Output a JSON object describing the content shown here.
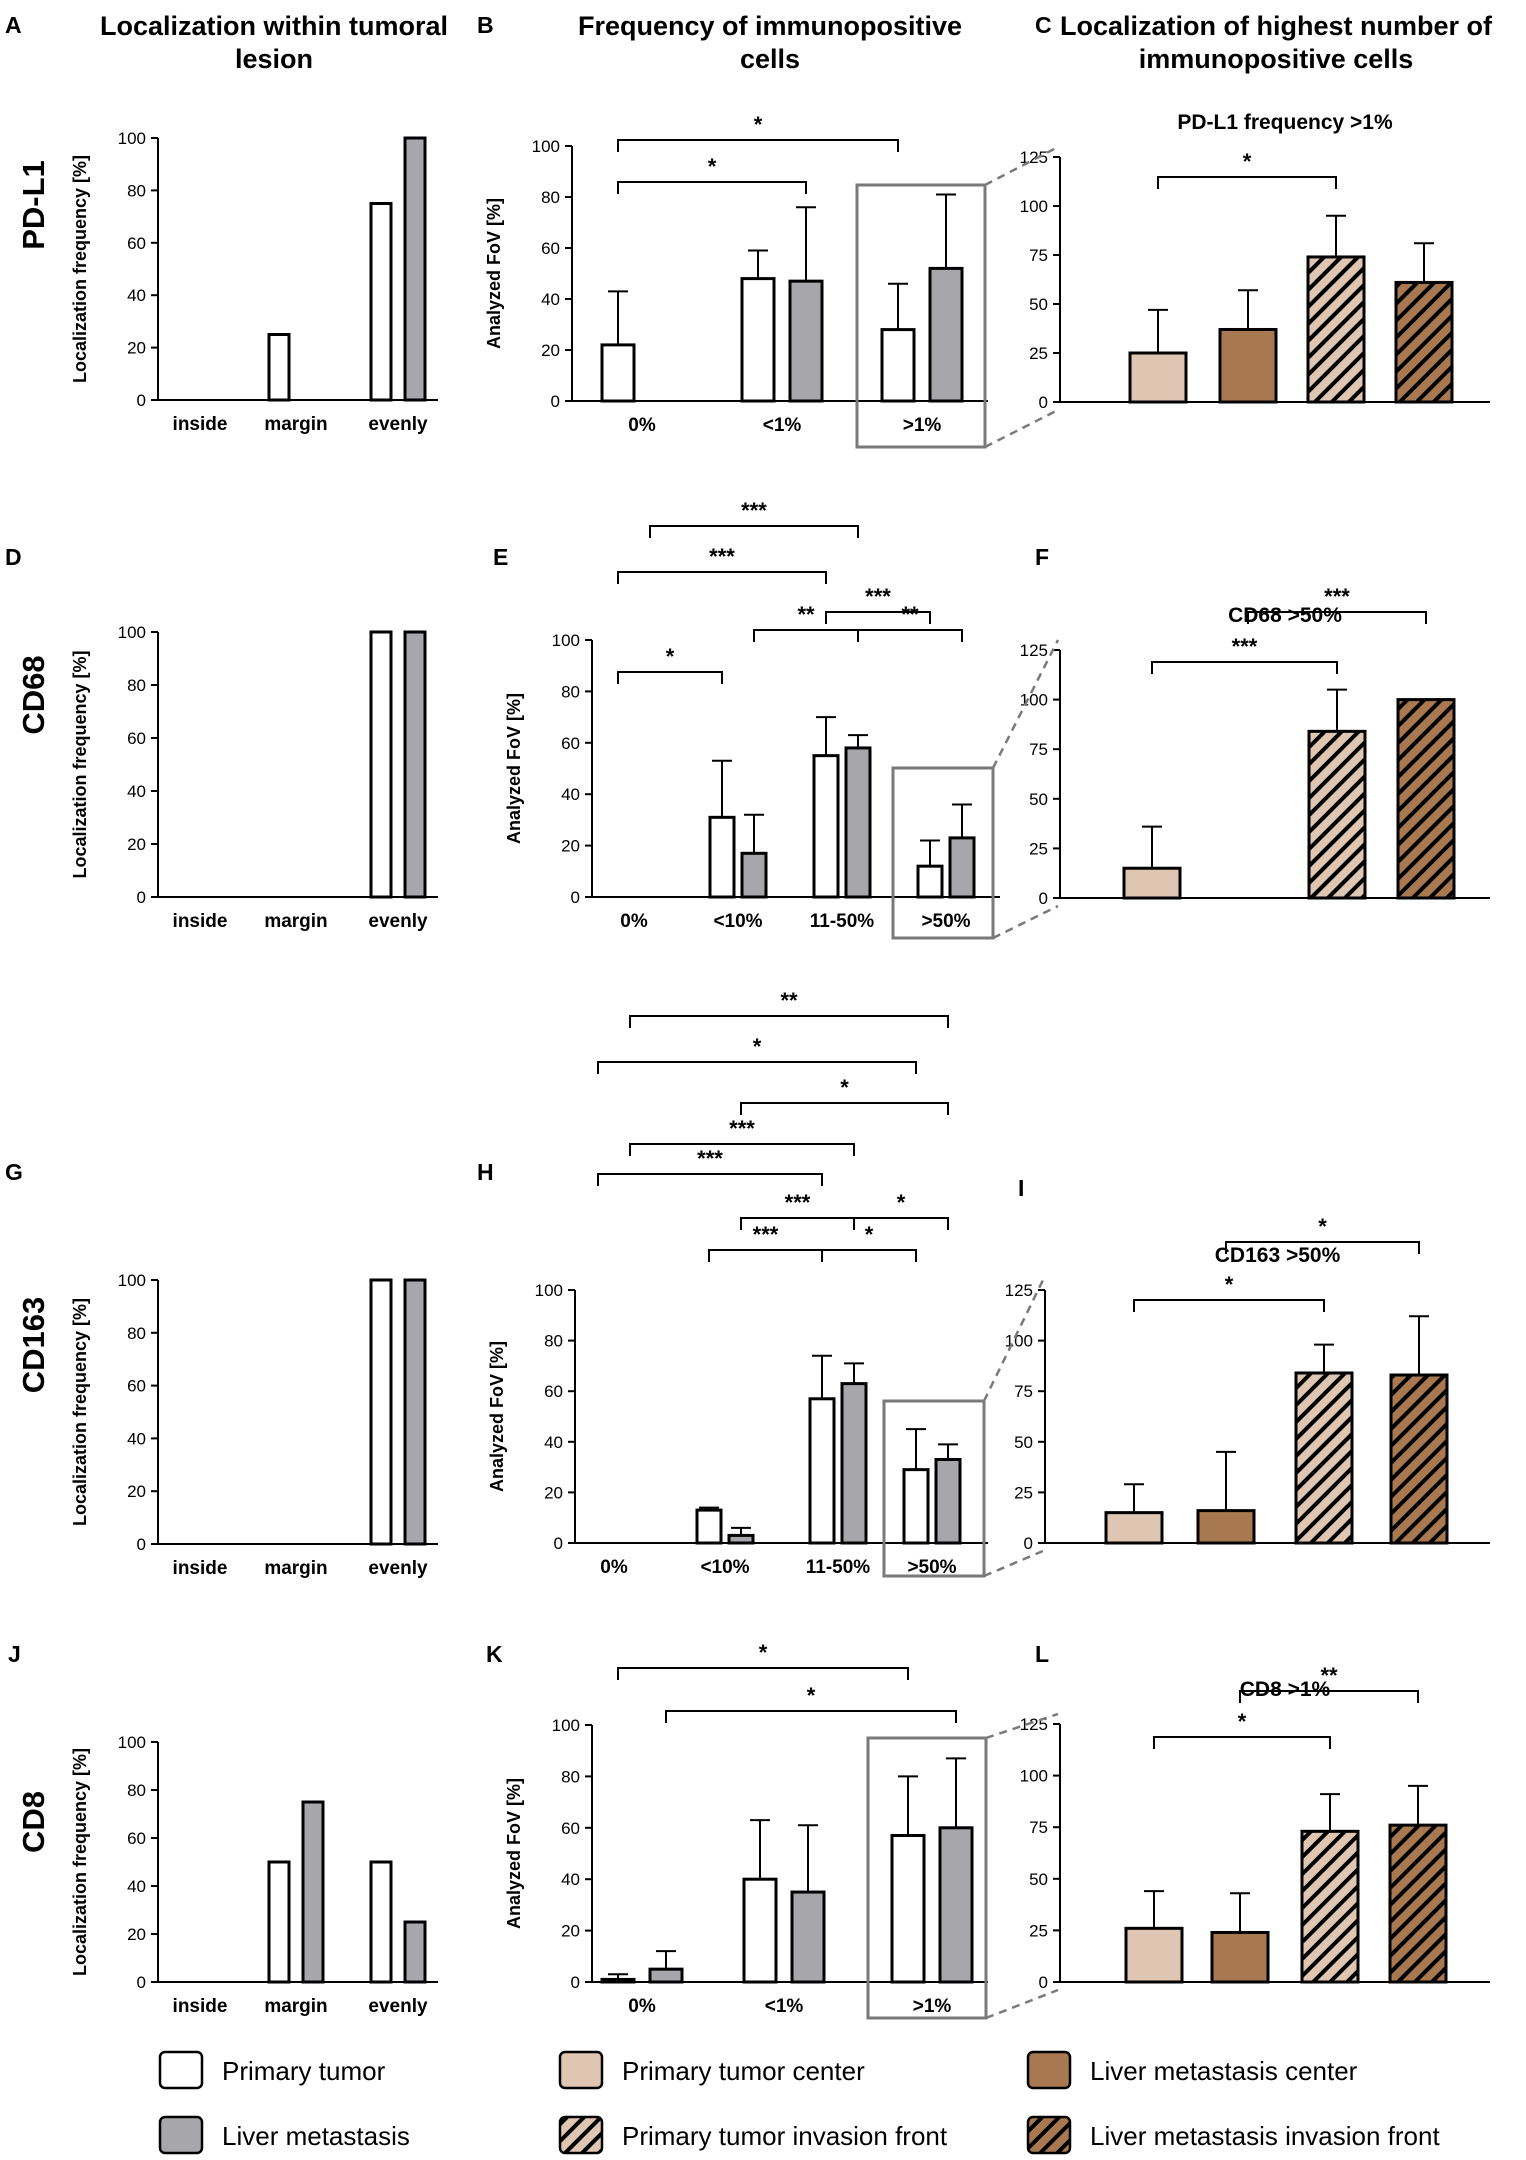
{
  "panel_letters": [
    "A",
    "B",
    "C",
    "D",
    "E",
    "F",
    "G",
    "H",
    "I",
    "J",
    "K",
    "L"
  ],
  "column_titles": {
    "A": [
      "Localization within tumoral",
      "lesion"
    ],
    "B": [
      "Frequency of immunopositive",
      "cells"
    ],
    "C": [
      "Localization of highest number of",
      "immunopositive cells"
    ]
  },
  "row_labels": [
    "PD-L1",
    "CD68",
    "CD163",
    "CD8"
  ],
  "colors": {
    "primary_tumor": "#ffffff",
    "liver_metastasis": "#a7a7ab",
    "primary_center": "#dfc6b3",
    "liver_center": "#a87850",
    "primary_front_bg": "#dfc6b3",
    "liver_front_bg": "#a87850",
    "stroke": "#000000",
    "zoom_box": "#7a7a7a"
  },
  "legend": [
    {
      "label": "Primary tumor",
      "fill": "primary_tumor"
    },
    {
      "label": "Liver metastasis",
      "fill": "liver_metastasis"
    },
    {
      "label": "Primary tumor center",
      "fill": "primary_center"
    },
    {
      "label": "Primary tumor invasion front",
      "fill": "primary_front"
    },
    {
      "label": "Liver metastasis center",
      "fill": "liver_center"
    },
    {
      "label": "Liver metastasis invasion front",
      "fill": "liver_front"
    }
  ],
  "chart_data": [
    {
      "id": "A",
      "type": "bar",
      "title": "",
      "ylabel": "Localization frequency [%]",
      "ylim": [
        0,
        100
      ],
      "yticks": [
        0,
        20,
        40,
        60,
        80,
        100
      ],
      "categories": [
        "inside",
        "margin",
        "evenly"
      ],
      "series": [
        {
          "name": "Primary tumor",
          "values": [
            0,
            25,
            75
          ]
        },
        {
          "name": "Liver metastasis",
          "values": [
            0,
            0,
            100
          ]
        }
      ],
      "errors": null,
      "significance": []
    },
    {
      "id": "B",
      "type": "bar",
      "title": "",
      "ylabel": "Analyzed FoV [%]",
      "ylim": [
        0,
        100
      ],
      "yticks": [
        0,
        20,
        40,
        60,
        80,
        100
      ],
      "categories": [
        "0%",
        "<1%",
        ">1%"
      ],
      "series": [
        {
          "name": "Primary tumor",
          "values": [
            22,
            48,
            28
          ]
        },
        {
          "name": "Liver metastasis",
          "values": [
            0,
            47,
            52
          ]
        }
      ],
      "errors": [
        [
          21,
          11,
          18
        ],
        [
          0,
          29,
          29
        ]
      ],
      "significance": [
        {
          "from": [
            0,
            0
          ],
          "to": [
            2,
            0
          ],
          "label": "*"
        },
        {
          "from": [
            0,
            0
          ],
          "to": [
            1,
            1
          ],
          "label": "*"
        }
      ],
      "highlight": 2
    },
    {
      "id": "C",
      "type": "bar",
      "title": "PD-L1 frequency >1%",
      "ylabel": "",
      "ylim": [
        0,
        125
      ],
      "yticks": [
        0,
        25,
        50,
        75,
        100,
        125
      ],
      "categories": [
        "Primary tumor center",
        "Liver metastasis center",
        "Primary tumor invasion front",
        "Liver metastasis invasion front"
      ],
      "values": [
        25,
        37,
        74,
        61
      ],
      "errors": [
        22,
        20,
        21,
        20
      ],
      "significance": [
        {
          "from": 0,
          "to": 2,
          "label": "*"
        }
      ]
    },
    {
      "id": "D",
      "type": "bar",
      "title": "",
      "ylabel": "Localization frequency [%]",
      "ylim": [
        0,
        100
      ],
      "yticks": [
        0,
        20,
        40,
        60,
        80,
        100
      ],
      "categories": [
        "inside",
        "margin",
        "evenly"
      ],
      "series": [
        {
          "name": "Primary tumor",
          "values": [
            0,
            0,
            100
          ]
        },
        {
          "name": "Liver metastasis",
          "values": [
            0,
            0,
            100
          ]
        }
      ],
      "errors": null,
      "significance": []
    },
    {
      "id": "E",
      "type": "bar",
      "title": "",
      "ylabel": "Analyzed FoV [%]",
      "ylim": [
        0,
        100
      ],
      "yticks": [
        0,
        20,
        40,
        60,
        80,
        100
      ],
      "categories": [
        "0%",
        "<10%",
        "11-50%",
        ">50%"
      ],
      "series": [
        {
          "name": "Primary tumor",
          "values": [
            0,
            31,
            55,
            12
          ]
        },
        {
          "name": "Liver metastasis",
          "values": [
            0,
            17,
            58,
            23
          ]
        }
      ],
      "errors": [
        [
          0,
          22,
          15,
          10
        ],
        [
          0,
          15,
          5,
          13
        ]
      ],
      "significance": [
        {
          "from": [
            0,
            0
          ],
          "to": [
            1,
            0
          ],
          "label": "*"
        },
        {
          "from": [
            2,
            0
          ],
          "to": [
            3,
            0
          ],
          "label": "***"
        },
        {
          "from": [
            1,
            1
          ],
          "to": [
            2,
            1
          ],
          "label": "**"
        },
        {
          "from": [
            2,
            1
          ],
          "to": [
            3,
            1
          ],
          "label": "**"
        },
        {
          "from": [
            0,
            0
          ],
          "to": [
            2,
            0
          ],
          "label": "***"
        },
        {
          "from": [
            0,
            1
          ],
          "to": [
            2,
            1
          ],
          "label": "***"
        }
      ],
      "highlight": 3
    },
    {
      "id": "F",
      "type": "bar",
      "title": "CD68 >50%",
      "ylabel": "",
      "ylim": [
        0,
        125
      ],
      "yticks": [
        0,
        25,
        50,
        75,
        100,
        125
      ],
      "categories": [
        "Primary tumor center",
        "Liver metastasis center",
        "Primary tumor invasion front",
        "Liver metastasis invasion front"
      ],
      "values": [
        15,
        0,
        84,
        100
      ],
      "errors": [
        21,
        0,
        21,
        0
      ],
      "significance": [
        {
          "from": 0,
          "to": 2,
          "label": "***"
        },
        {
          "from": 1,
          "to": 3,
          "label": "***"
        }
      ]
    },
    {
      "id": "G",
      "type": "bar",
      "title": "",
      "ylabel": "Localization frequency [%]",
      "ylim": [
        0,
        100
      ],
      "yticks": [
        0,
        20,
        40,
        60,
        80,
        100
      ],
      "categories": [
        "inside",
        "margin",
        "evenly"
      ],
      "series": [
        {
          "name": "Primary tumor",
          "values": [
            0,
            0,
            100
          ]
        },
        {
          "name": "Liver metastasis",
          "values": [
            0,
            0,
            100
          ]
        }
      ],
      "errors": null,
      "significance": []
    },
    {
      "id": "H",
      "type": "bar",
      "title": "",
      "ylabel": "Analyzed FoV [%]",
      "ylim": [
        0,
        100
      ],
      "yticks": [
        0,
        20,
        40,
        60,
        80,
        100
      ],
      "categories": [
        "0%",
        "<10%",
        "11-50%",
        ">50%"
      ],
      "series": [
        {
          "name": "Primary tumor",
          "values": [
            0,
            13,
            57,
            29
          ]
        },
        {
          "name": "Liver metastasis",
          "values": [
            0,
            3,
            63,
            33
          ]
        }
      ],
      "errors": [
        [
          0,
          1,
          17,
          16
        ],
        [
          0,
          3,
          8,
          6
        ]
      ],
      "significance": [
        {
          "from": [
            1,
            0
          ],
          "to": [
            2,
            0
          ],
          "label": "***"
        },
        {
          "from": [
            2,
            0
          ],
          "to": [
            3,
            0
          ],
          "label": "*"
        },
        {
          "from": [
            1,
            1
          ],
          "to": [
            2,
            1
          ],
          "label": "***"
        },
        {
          "from": [
            2,
            1
          ],
          "to": [
            3,
            1
          ],
          "label": "*"
        },
        {
          "from": [
            0,
            0
          ],
          "to": [
            2,
            0
          ],
          "label": "***"
        },
        {
          "from": [
            0,
            1
          ],
          "to": [
            2,
            1
          ],
          "label": "***"
        },
        {
          "from": [
            1,
            1
          ],
          "to": [
            3,
            1
          ],
          "label": "*"
        },
        {
          "from": [
            0,
            0
          ],
          "to": [
            3,
            0
          ],
          "label": "*"
        },
        {
          "from": [
            0,
            1
          ],
          "to": [
            3,
            1
          ],
          "label": "**"
        }
      ],
      "highlight": 3
    },
    {
      "id": "I",
      "type": "bar",
      "title": "CD163 >50%",
      "ylabel": "",
      "ylim": [
        0,
        125
      ],
      "yticks": [
        0,
        25,
        50,
        75,
        100,
        125
      ],
      "categories": [
        "Primary tumor center",
        "Liver metastasis center",
        "Primary tumor invasion front",
        "Liver metastasis invasion front"
      ],
      "values": [
        15,
        16,
        84,
        83
      ],
      "errors": [
        14,
        29,
        14,
        29
      ],
      "significance": [
        {
          "from": 0,
          "to": 2,
          "label": "*"
        },
        {
          "from": 1,
          "to": 3,
          "label": "*"
        }
      ]
    },
    {
      "id": "J",
      "type": "bar",
      "title": "",
      "ylabel": "Localization frequency [%]",
      "ylim": [
        0,
        100
      ],
      "yticks": [
        0,
        20,
        40,
        60,
        80,
        100
      ],
      "categories": [
        "inside",
        "margin",
        "evenly"
      ],
      "series": [
        {
          "name": "Primary tumor",
          "values": [
            0,
            50,
            50
          ]
        },
        {
          "name": "Liver metastasis",
          "values": [
            0,
            75,
            25
          ]
        }
      ],
      "errors": null,
      "significance": []
    },
    {
      "id": "K",
      "type": "bar",
      "title": "",
      "ylabel": "Analyzed FoV [%]",
      "ylim": [
        0,
        100
      ],
      "yticks": [
        0,
        20,
        40,
        60,
        80,
        100
      ],
      "categories": [
        "0%",
        "<1%",
        ">1%"
      ],
      "series": [
        {
          "name": "Primary tumor",
          "values": [
            1,
            40,
            57
          ]
        },
        {
          "name": "Liver metastasis",
          "values": [
            5,
            35,
            60
          ]
        }
      ],
      "errors": [
        [
          2,
          23,
          23
        ],
        [
          7,
          26,
          27
        ]
      ],
      "significance": [
        {
          "from": [
            0,
            0
          ],
          "to": [
            2,
            0
          ],
          "label": "*"
        },
        {
          "from": [
            0,
            1
          ],
          "to": [
            2,
            1
          ],
          "label": "*"
        }
      ],
      "highlight": 2
    },
    {
      "id": "L",
      "type": "bar",
      "title": "CD8 >1%",
      "ylabel": "",
      "ylim": [
        0,
        125
      ],
      "yticks": [
        0,
        25,
        50,
        75,
        100,
        125
      ],
      "categories": [
        "Primary tumor center",
        "Liver metastasis center",
        "Primary tumor invasion front",
        "Liver metastasis invasion front"
      ],
      "values": [
        26,
        24,
        73,
        76
      ],
      "errors": [
        18,
        19,
        18,
        19
      ],
      "significance": [
        {
          "from": 0,
          "to": 2,
          "label": "*"
        },
        {
          "from": 1,
          "to": 3,
          "label": "**"
        }
      ]
    }
  ]
}
